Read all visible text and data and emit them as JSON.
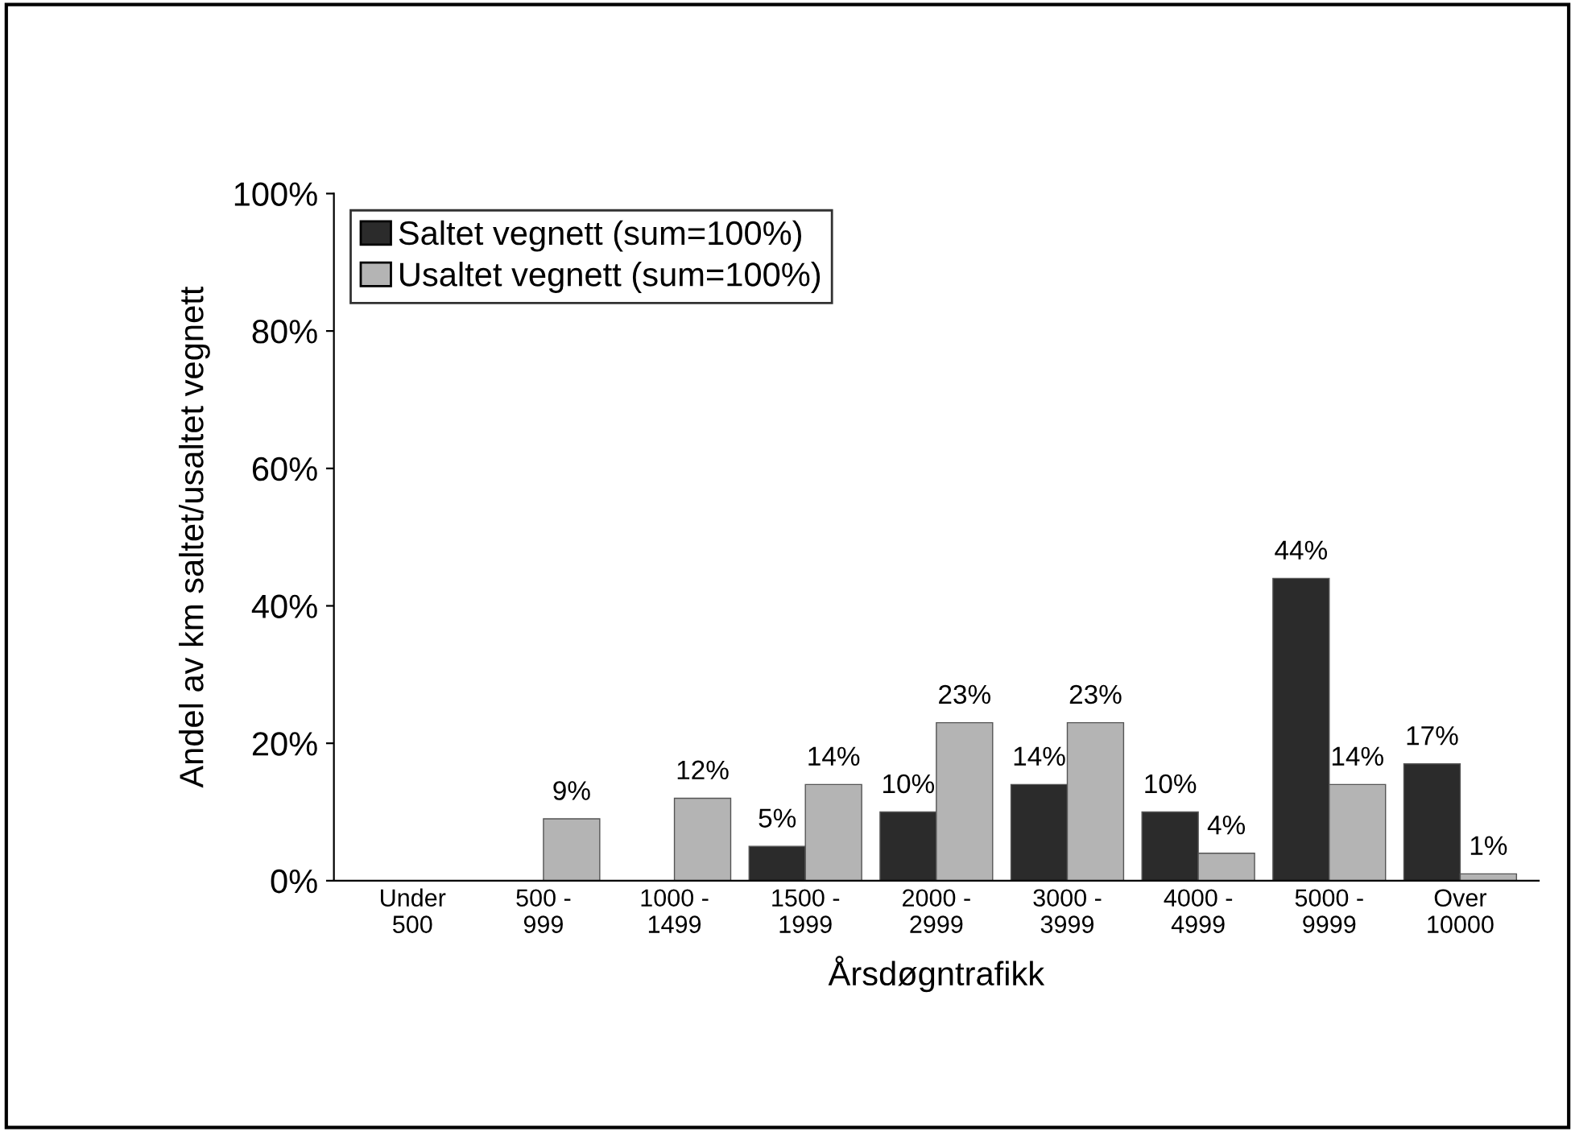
{
  "chart_data": {
    "type": "bar",
    "xlabel": "Årsdøgntrafikk",
    "ylabel": "Andel av km saltet/usaltet vegnett",
    "categories": [
      "Under\n500",
      "500 -\n999",
      "1000 -\n1499",
      "1500 -\n1999",
      "2000 -\n2999",
      "3000 -\n3999",
      "4000 -\n4999",
      "5000 -\n9999",
      "Over\n10000"
    ],
    "series": [
      {
        "name": "Saltet vegnett (sum=100%)",
        "color": "#2b2b2b",
        "values": [
          null,
          null,
          null,
          5,
          10,
          14,
          10,
          44,
          17
        ],
        "value_labels": [
          null,
          null,
          null,
          "5%",
          "10%",
          "14%",
          "10%",
          "44%",
          "17%"
        ]
      },
      {
        "name": "Usaltet vegnett (sum=100%)",
        "color": "#b4b4b4",
        "values": [
          null,
          9,
          12,
          14,
          23,
          23,
          4,
          14,
          1
        ],
        "value_labels": [
          null,
          "9%",
          "12%",
          "14%",
          "23%",
          "23%",
          "4%",
          "14%",
          "1%"
        ]
      }
    ],
    "ylim": [
      0,
      100
    ],
    "yticks": [
      {
        "value": 0,
        "label": "0%"
      },
      {
        "value": 20,
        "label": "20%"
      },
      {
        "value": 40,
        "label": "40%"
      },
      {
        "value": 60,
        "label": "60%"
      },
      {
        "value": 80,
        "label": "80%"
      },
      {
        "value": 100,
        "label": "100%"
      }
    ],
    "legend": "top left",
    "grid": false
  }
}
